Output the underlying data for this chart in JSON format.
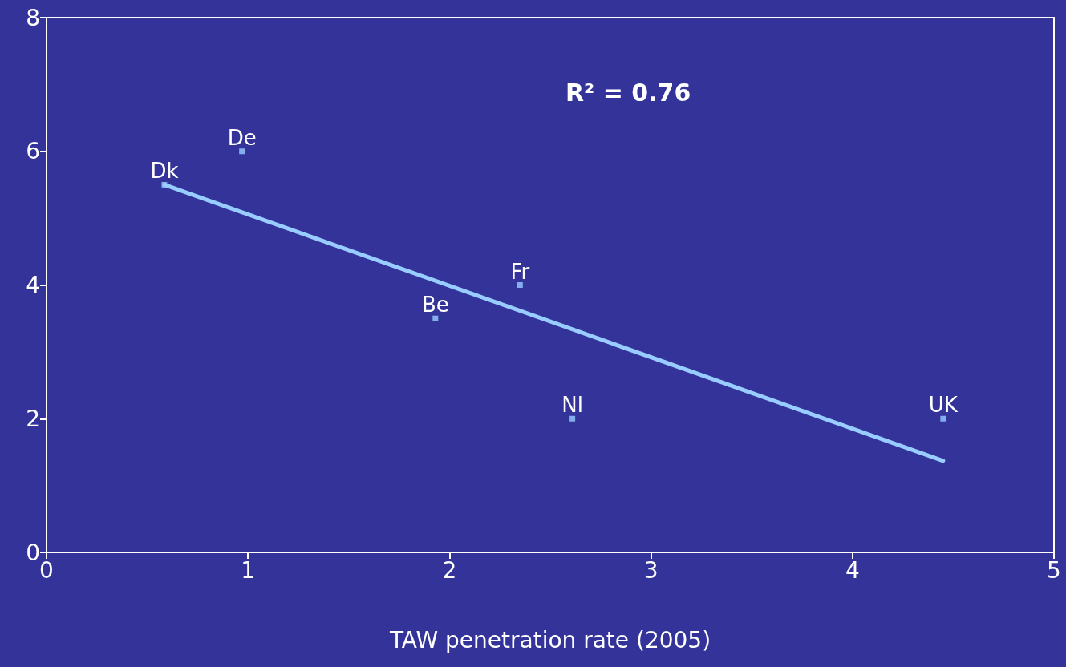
{
  "chart_data": {
    "type": "scatter",
    "xlabel": "TAW penetration rate (2005)",
    "xlim": [
      0,
      5
    ],
    "xticks": [
      0,
      1,
      2,
      3,
      4,
      5
    ],
    "ylim": [
      0,
      8
    ],
    "yticks": [
      0,
      2,
      4,
      6,
      8
    ],
    "grid": false,
    "series": [
      {
        "marker": "square",
        "color": "#99ccff",
        "x": [
          0.585,
          0.97,
          1.93,
          2.35,
          2.61,
          4.45
        ],
        "values": [
          5.5,
          6.0,
          3.5,
          4.0,
          2.0,
          2.0
        ]
      },
      {
        "type": "line",
        "color": "#99ccff",
        "x": [
          0.585,
          4.45
        ],
        "values": [
          5.5,
          1.37
        ],
        "line_style": "solid",
        "marker": "none"
      }
    ],
    "annotations": [
      "R² = 0.76",
      {
        "text": "Dk",
        "x": 0.585,
        "y": 5.5
      },
      {
        "text": "De",
        "x": 0.97,
        "y": 6.0
      },
      {
        "text": "Be",
        "x": 1.93,
        "y": 3.5
      },
      {
        "text": "Fr",
        "x": 2.35,
        "y": 4.0
      },
      {
        "text": "Nl",
        "x": 2.61,
        "y": 2.0
      },
      {
        "text": "UK",
        "x": 4.45,
        "y": 2.0
      }
    ]
  }
}
